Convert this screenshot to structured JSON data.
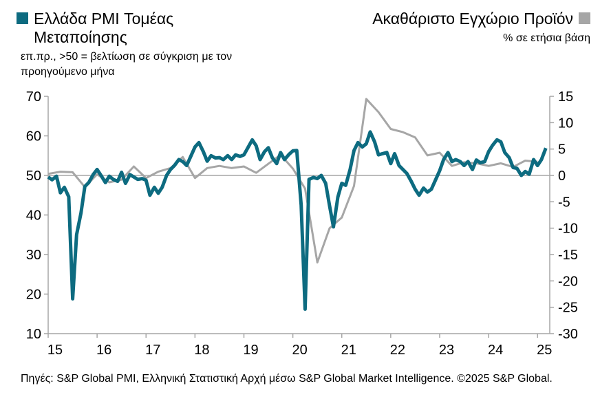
{
  "legend": {
    "left_title": "Ελλάδα PMI Τομέας Μεταποίησης",
    "left_subtitle": "επ.πρ., >50 = βελτίωση σε σύγκριση με τον προηγούμενο μήνα",
    "right_title": "Ακαθάριστο Εγχώριο Προϊόν",
    "right_subtitle": "% σε ετήσια βάση"
  },
  "source": "Πηγές: S&P Global PMI, Ελληνική Στατιστική Αρχή μέσω S&P Global Market Intelligence. ©2025 S&P Global.",
  "colors": {
    "pmi": "#0d6b80",
    "gdp": "#a6a6a6"
  },
  "chart_data": {
    "type": "line",
    "x_tick_labels": [
      "15",
      "16",
      "17",
      "18",
      "19",
      "20",
      "21",
      "22",
      "23",
      "24",
      "25"
    ],
    "y_left_ticks": [
      70,
      60,
      50,
      40,
      30,
      20,
      10
    ],
    "y_right_ticks": [
      15,
      10,
      5,
      0,
      -5,
      -10,
      -15,
      -20,
      -25,
      -30
    ],
    "y_left_lim": [
      10,
      70
    ],
    "y_right_lim": [
      -30,
      15
    ],
    "x_lim": [
      2015.0,
      2025.25
    ],
    "series": [
      {
        "name": "Ελλάδα PMI Τομέας Μεταποίησης",
        "axis": "left",
        "x": [
          2015.0,
          2015.08,
          2015.17,
          2015.25,
          2015.33,
          2015.42,
          2015.5,
          2015.58,
          2015.67,
          2015.75,
          2015.83,
          2015.92,
          2016.0,
          2016.08,
          2016.17,
          2016.25,
          2016.33,
          2016.42,
          2016.5,
          2016.58,
          2016.67,
          2016.75,
          2016.83,
          2016.92,
          2017.0,
          2017.08,
          2017.17,
          2017.25,
          2017.33,
          2017.42,
          2017.5,
          2017.58,
          2017.67,
          2017.75,
          2017.83,
          2017.92,
          2018.0,
          2018.08,
          2018.17,
          2018.25,
          2018.33,
          2018.42,
          2018.5,
          2018.58,
          2018.67,
          2018.75,
          2018.83,
          2018.92,
          2019.0,
          2019.08,
          2019.17,
          2019.25,
          2019.33,
          2019.42,
          2019.5,
          2019.58,
          2019.67,
          2019.75,
          2019.83,
          2019.92,
          2020.0,
          2020.08,
          2020.17,
          2020.25,
          2020.33,
          2020.42,
          2020.5,
          2020.58,
          2020.67,
          2020.75,
          2020.83,
          2020.92,
          2021.0,
          2021.08,
          2021.17,
          2021.25,
          2021.33,
          2021.42,
          2021.5,
          2021.58,
          2021.67,
          2021.75,
          2021.83,
          2021.92,
          2022.0,
          2022.08,
          2022.17,
          2022.25,
          2022.33,
          2022.42,
          2022.5,
          2022.58,
          2022.67,
          2022.75,
          2022.83,
          2022.92,
          2023.0,
          2023.08,
          2023.17,
          2023.25,
          2023.33,
          2023.42,
          2023.5,
          2023.58,
          2023.67,
          2023.75,
          2023.83,
          2023.92,
          2024.0,
          2024.08,
          2024.17,
          2024.25,
          2024.33,
          2024.42,
          2024.5,
          2024.58,
          2024.67,
          2024.75,
          2024.83,
          2024.92,
          2025.0,
          2025.08,
          2025.17
        ],
        "values": [
          49.6,
          48.9,
          49.8,
          45.6,
          47.0,
          44.6,
          18.8,
          35.0,
          40.5,
          47.2,
          48.2,
          50.2,
          51.5,
          50.0,
          48.2,
          49.8,
          49.0,
          48.5,
          50.8,
          48.0,
          50.2,
          49.6,
          49.0,
          49.2,
          48.8,
          45.0,
          47.0,
          45.5,
          47.0,
          50.0,
          51.5,
          52.5,
          54.0,
          53.5,
          52.5,
          55.0,
          57.2,
          58.3,
          56.0,
          53.6,
          55.0,
          54.4,
          54.5,
          54.0,
          55.0,
          54.0,
          55.2,
          54.8,
          55.2,
          57.0,
          59.0,
          57.5,
          54.0,
          56.0,
          57.0,
          54.5,
          53.0,
          55.8,
          54.0,
          55.3,
          56.2,
          56.3,
          42.5,
          16.2,
          49.0,
          49.5,
          49.2,
          50.0,
          48.0,
          42.3,
          37.0,
          44.5,
          48.0,
          47.5,
          51.5,
          56.3,
          58.3,
          57.2,
          58.0,
          61.0,
          58.5,
          55.2,
          55.5,
          55.8,
          53.0,
          55.5,
          52.5,
          51.5,
          50.5,
          48.5,
          46.5,
          45.0,
          46.8,
          45.8,
          46.5,
          49.0,
          51.2,
          54.0,
          55.8,
          53.5,
          54.0,
          53.5,
          52.5,
          53.5,
          51.5,
          53.9,
          53.2,
          53.5,
          56.0,
          57.6,
          59.0,
          58.5,
          55.8,
          54.5,
          52.0,
          51.8,
          50.0,
          51.0,
          50.3,
          54.0,
          52.5,
          54.0,
          56.9
        ]
      },
      {
        "name": "Ακαθάριστο Εγχώριο Προϊόν",
        "axis": "right",
        "x": [
          2015.0,
          2015.25,
          2015.5,
          2015.75,
          2016.0,
          2016.25,
          2016.5,
          2016.75,
          2017.0,
          2017.25,
          2017.5,
          2017.75,
          2018.0,
          2018.25,
          2018.5,
          2018.75,
          2019.0,
          2019.25,
          2019.5,
          2019.75,
          2020.0,
          2020.25,
          2020.5,
          2020.75,
          2021.0,
          2021.25,
          2021.5,
          2021.75,
          2022.0,
          2022.25,
          2022.5,
          2022.75,
          2023.0,
          2023.25,
          2023.5,
          2023.75,
          2024.0,
          2024.25,
          2024.5,
          2024.75,
          2025.0
        ],
        "values": [
          0.3,
          0.7,
          0.6,
          -2.2,
          0.2,
          -1.3,
          -0.8,
          1.7,
          -0.5,
          0.7,
          1.4,
          3.5,
          -0.5,
          1.4,
          1.8,
          1.4,
          1.7,
          0.5,
          2.2,
          3.9,
          1.3,
          -2.5,
          -16.5,
          -10.0,
          -8.0,
          -2.0,
          14.5,
          12.0,
          8.8,
          8.2,
          7.2,
          3.8,
          4.3,
          1.8,
          2.5,
          2.3,
          1.8,
          2.3,
          1.6,
          2.8,
          2.6
        ]
      }
    ]
  }
}
